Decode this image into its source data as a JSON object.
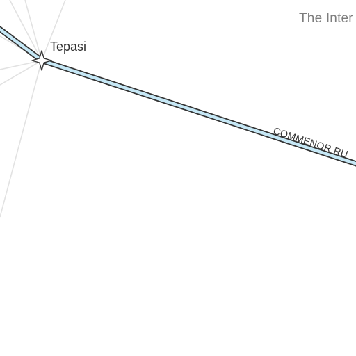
{
  "map": {
    "region_label": "The Inter",
    "system": {
      "name": "Tepasi",
      "marker_icon": "four-point-star-icon"
    },
    "route": {
      "label": "COMMENOR RU",
      "fill_color": "#c6e8f6",
      "outline_color": "#333333"
    },
    "hyperlane_color": "#e2e2e2"
  }
}
